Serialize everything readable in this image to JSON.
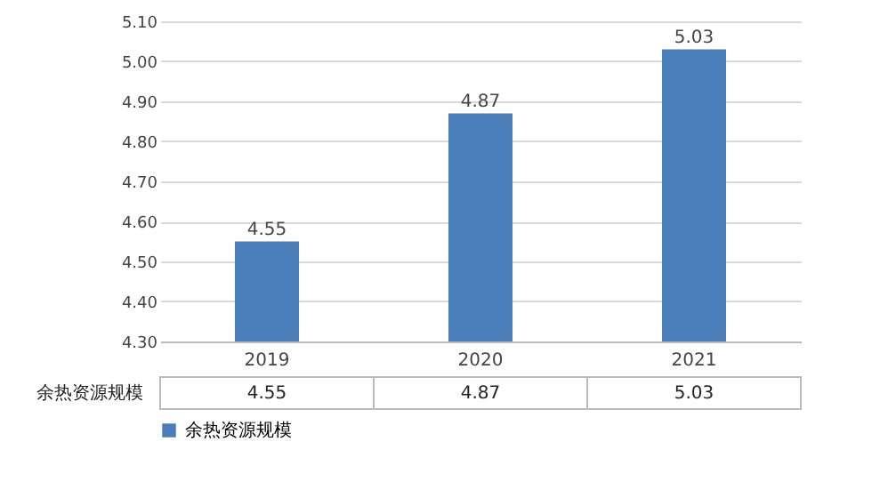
{
  "chart_data": {
    "type": "bar",
    "categories": [
      "2019",
      "2020",
      "2021"
    ],
    "series": [
      {
        "name": "余热资源规模",
        "color": "#4a7ebb",
        "values": [
          4.55,
          4.87,
          5.03
        ],
        "value_labels": [
          "4.55",
          "4.87",
          "5.03"
        ]
      }
    ],
    "ylim": [
      4.3,
      5.1
    ],
    "yticks": [
      {
        "value": 4.3,
        "label": "4.30"
      },
      {
        "value": 4.4,
        "label": "4.40"
      },
      {
        "value": 4.5,
        "label": "4.50"
      },
      {
        "value": 4.6,
        "label": "4.60"
      },
      {
        "value": 4.7,
        "label": "4.70"
      },
      {
        "value": 4.8,
        "label": "4.80"
      },
      {
        "value": 4.9,
        "label": "4.90"
      },
      {
        "value": 5.0,
        "label": "5.00"
      },
      {
        "value": 5.1,
        "label": "5.10"
      }
    ],
    "grid": "y",
    "legend": "bottom"
  }
}
